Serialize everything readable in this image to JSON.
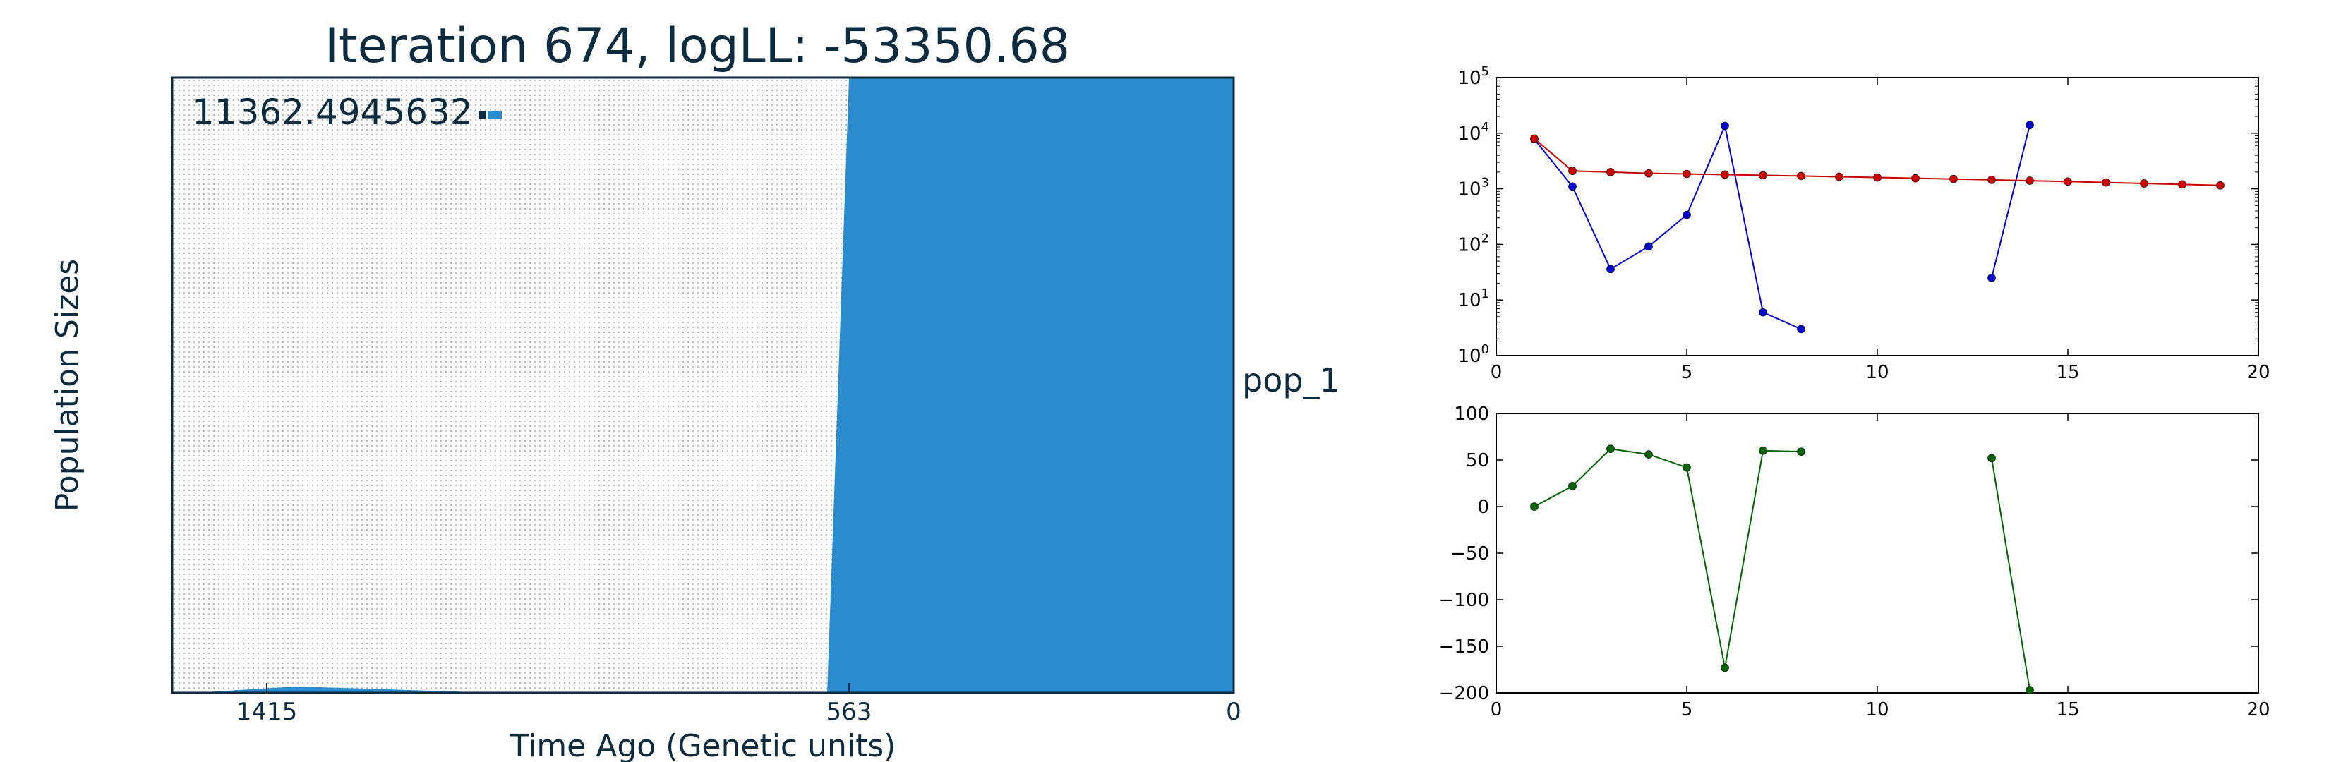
{
  "main_panel": {
    "title": "Iteration 674, logLL:  -53350.68",
    "ylabel": "Population Sizes",
    "xlabel": "Time Ago (Genetic units)",
    "x_ticks": [
      "1415",
      "563",
      "0"
    ],
    "scale_value": "11362.4945632",
    "population_label": "pop_1",
    "fill_color": "#2b8bcd",
    "frame_color": "#0d2b3e",
    "text_color": "#0d2b3e"
  },
  "chart_data": [
    {
      "type": "area",
      "title": "Iteration 674, logLL:  -53350.68",
      "xlabel": "Time Ago (Genetic units)",
      "ylabel": "Population Sizes",
      "x_ticks": [
        1415,
        563,
        0
      ],
      "x_axis_reversed": true,
      "series": [
        {
          "name": "pop_1",
          "color": "#2b8bcd",
          "segments": [
            {
              "from_time": 1415,
              "to_time": 1200,
              "size_fraction_top": 0.01
            },
            {
              "from_time": 595,
              "to_time": 563,
              "size_fraction_top": 1.0
            },
            {
              "from_time": 563,
              "to_time": 0,
              "size_fraction_top": 1.0
            }
          ]
        }
      ],
      "scale_bar_value": 11362.4945632,
      "grid": false
    },
    {
      "type": "line",
      "ylog": true,
      "xlim": [
        0,
        20
      ],
      "ylim": [
        1,
        100000
      ],
      "x_ticks": [
        0,
        5,
        10,
        15,
        20
      ],
      "y_ticks": [
        {
          "value": 1,
          "base": "10",
          "exp": "0"
        },
        {
          "value": 10,
          "base": "10",
          "exp": "1"
        },
        {
          "value": 100,
          "base": "10",
          "exp": "2"
        },
        {
          "value": 1000,
          "base": "10",
          "exp": "3"
        },
        {
          "value": 10000,
          "base": "10",
          "exp": "4"
        },
        {
          "value": 100000,
          "base": "10",
          "exp": "5"
        }
      ],
      "series": [
        {
          "color": "#0000cc",
          "segments": [
            [
              [
                1,
                7800
              ],
              [
                2,
                1100
              ],
              [
                3,
                36
              ],
              [
                4,
                92
              ],
              [
                5,
                340
              ],
              [
                6,
                13500
              ],
              [
                7,
                6
              ],
              [
                8,
                3
              ]
            ],
            [
              [
                13,
                25
              ],
              [
                14,
                14000
              ]
            ]
          ]
        },
        {
          "color": "#cc0000",
          "segments": [
            [
              [
                1,
                8000
              ],
              [
                2,
                2100
              ],
              [
                3,
                2000
              ],
              [
                4,
                1900
              ],
              [
                5,
                1850
              ],
              [
                6,
                1800
              ],
              [
                7,
                1750
              ],
              [
                8,
                1700
              ],
              [
                9,
                1650
              ],
              [
                10,
                1600
              ],
              [
                11,
                1550
              ],
              [
                12,
                1500
              ],
              [
                13,
                1450
              ],
              [
                14,
                1400
              ],
              [
                15,
                1350
              ],
              [
                16,
                1300
              ],
              [
                17,
                1250
              ],
              [
                18,
                1200
              ],
              [
                19,
                1150
              ]
            ]
          ]
        }
      ],
      "grid": false
    },
    {
      "type": "line",
      "xlim": [
        0,
        20
      ],
      "ylim": [
        -200,
        100
      ],
      "x_ticks": [
        0,
        5,
        10,
        15,
        20
      ],
      "y_ticks": [
        100,
        50,
        0,
        -50,
        -100,
        -150,
        -200
      ],
      "series": [
        {
          "color": "#006400",
          "segments": [
            [
              [
                1,
                0
              ],
              [
                2,
                22
              ],
              [
                3,
                62
              ],
              [
                4,
                56
              ],
              [
                5,
                42
              ],
              [
                6,
                -173
              ],
              [
                7,
                60
              ],
              [
                8,
                59
              ]
            ],
            [
              [
                13,
                52
              ],
              [
                14,
                -197
              ]
            ]
          ]
        }
      ],
      "grid": false
    }
  ]
}
